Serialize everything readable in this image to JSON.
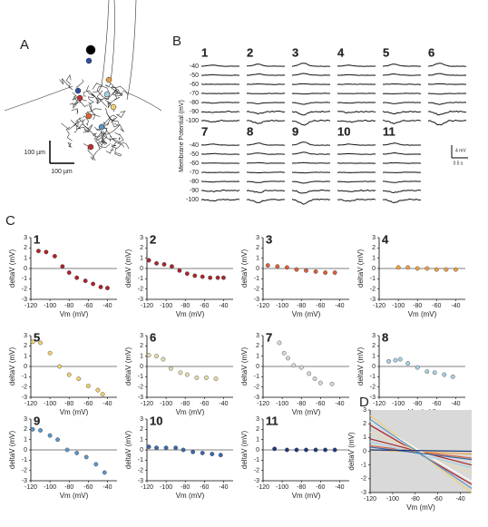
{
  "panel_labels": [
    "A",
    "B",
    "C",
    "D"
  ],
  "panel_a": {
    "scale_y": "100 µm",
    "scale_x": "100 µm"
  },
  "panel_b": {
    "ylabel": "Membrane Potential (mV)",
    "cells": [
      "1",
      "2",
      "3",
      "4",
      "5",
      "6",
      "7",
      "8",
      "9",
      "10",
      "11"
    ],
    "cell_colors": [
      "#b0202a",
      "#a8282c",
      "#d8603a",
      "#eea040",
      "#f0d070",
      "#e6dcaa",
      "#d8d8d8",
      "#a8d0e2",
      "#5a96c8",
      "#3a68a8",
      "#1e3a7c"
    ],
    "levels_top": [
      "-40",
      "-50",
      "-60",
      "-70",
      "-80",
      "-90",
      "-100"
    ],
    "levels_bottom": [
      "-40",
      "-50",
      "-60",
      "-70",
      "-80",
      "-90",
      "-100"
    ],
    "scale_v": "4 mV",
    "scale_t": "0.5 s"
  },
  "chart_data": [
    {
      "type": "scatter",
      "title": "1",
      "color": "#b0202a",
      "x": [
        -112,
        -104,
        -95,
        -87,
        -80,
        -72,
        -63,
        -55,
        -47,
        -40
      ],
      "values": [
        1.7,
        1.6,
        1.2,
        0.2,
        -0.4,
        -0.9,
        -1.2,
        -1.5,
        -1.8,
        -1.9
      ],
      "xlim": [
        -120,
        -30
      ],
      "ylim": [
        -3,
        3
      ],
      "xticks": [
        -120,
        -100,
        -80,
        -60,
        -40
      ],
      "yticks": [
        -3,
        -2,
        -1,
        0,
        1,
        2,
        3
      ],
      "xlabel": "Vm (mV)",
      "ylabel": "deltaV (mV)"
    },
    {
      "type": "scatter",
      "title": "2",
      "color": "#a8282c",
      "x": [
        -118,
        -110,
        -102,
        -94,
        -86,
        -78,
        -70,
        -62,
        -54,
        -46,
        -40
      ],
      "values": [
        0.8,
        0.5,
        0.4,
        0.2,
        -0.2,
        -0.5,
        -0.7,
        -0.8,
        -0.9,
        -0.9,
        -0.9
      ],
      "xlim": [
        -120,
        -30
      ],
      "ylim": [
        -3,
        3
      ],
      "xticks": [
        -120,
        -100,
        -80,
        -60,
        -40
      ],
      "yticks": [
        -3,
        -2,
        -1,
        0,
        1,
        2,
        3
      ],
      "xlabel": "Vm (mV)",
      "ylabel": "deltaV (mV)"
    },
    {
      "type": "scatter",
      "title": "3",
      "color": "#d8603a",
      "x": [
        -115,
        -105,
        -95,
        -85,
        -75,
        -65,
        -55,
        -45
      ],
      "values": [
        0.3,
        0.2,
        0.1,
        -0.1,
        -0.2,
        -0.3,
        -0.4,
        -0.4
      ],
      "xlim": [
        -120,
        -30
      ],
      "ylim": [
        -3,
        3
      ],
      "xticks": [
        -120,
        -100,
        -80,
        -60,
        -40
      ],
      "yticks": [
        -3,
        -2,
        -1,
        0,
        1,
        2,
        3
      ],
      "xlabel": "Vm (mV)",
      "ylabel": "deltaV (mV)"
    },
    {
      "type": "scatter",
      "title": "4",
      "color": "#eea040",
      "x": [
        -100,
        -90,
        -80,
        -70,
        -60,
        -50,
        -40
      ],
      "values": [
        0.1,
        0.1,
        0,
        0,
        -0.1,
        -0.1,
        -0.1
      ],
      "xlim": [
        -120,
        -30
      ],
      "ylim": [
        -3,
        3
      ],
      "xticks": [
        -120,
        -100,
        -80,
        -60,
        -40
      ],
      "yticks": [
        -3,
        -2,
        -1,
        0,
        1,
        2,
        3
      ],
      "xlabel": "Vm (mV)",
      "ylabel": "deltaV (mV)"
    },
    {
      "type": "scatter",
      "title": "5",
      "color": "#f0d070",
      "x": [
        -118,
        -110,
        -100,
        -90,
        -80,
        -70,
        -60,
        -50,
        -45
      ],
      "values": [
        2.4,
        2.3,
        1.3,
        0,
        -0.8,
        -1.2,
        -1.9,
        -2.3,
        -2.7
      ],
      "xlim": [
        -120,
        -30
      ],
      "ylim": [
        -3,
        3
      ],
      "xticks": [
        -120,
        -100,
        -80,
        -60,
        -40
      ],
      "yticks": [
        -3,
        -2,
        -1,
        0,
        1,
        2,
        3
      ],
      "xlabel": "Vm (mV)",
      "ylabel": "deltaV (mV)"
    },
    {
      "type": "scatter",
      "title": "6",
      "color": "#e6dcaa",
      "x": [
        -118,
        -110,
        -103,
        -95,
        -85,
        -78,
        -68,
        -58,
        -48
      ],
      "values": [
        1.1,
        1.0,
        0.7,
        -0.2,
        -0.6,
        -0.8,
        -1.1,
        -1.1,
        -1.2
      ],
      "xlim": [
        -120,
        -30
      ],
      "ylim": [
        -3,
        3
      ],
      "xticks": [
        -120,
        -100,
        -80,
        -60,
        -40
      ],
      "yticks": [
        -3,
        -2,
        -1,
        0,
        1,
        2,
        3
      ],
      "xlabel": "Vm (mV)",
      "ylabel": "deltaV (mV)"
    },
    {
      "type": "scatter",
      "title": "7",
      "color": "#d8d8d8",
      "x": [
        -103,
        -98,
        -94,
        -88,
        -80,
        -72,
        -66,
        -60,
        -48
      ],
      "values": [
        2.3,
        1.3,
        0.8,
        0.1,
        -0.1,
        -0.7,
        -1.2,
        -1.6,
        -1.7
      ],
      "xlim": [
        -120,
        -30
      ],
      "ylim": [
        -3,
        3
      ],
      "xticks": [
        -120,
        -100,
        -80,
        -60,
        -40
      ],
      "yticks": [
        -3,
        -2,
        -1,
        0,
        1,
        2,
        3
      ],
      "xlabel": "Vm (mV)",
      "ylabel": "deltaV (mV)"
    },
    {
      "type": "scatter",
      "title": "8",
      "color": "#a8d0e2",
      "x": [
        -110,
        -103,
        -98,
        -90,
        -80,
        -70,
        -62,
        -52,
        -43
      ],
      "values": [
        0.5,
        0.6,
        0.7,
        0.3,
        -0.1,
        -0.5,
        -0.6,
        -0.8,
        -1.0
      ],
      "xlim": [
        -120,
        -30
      ],
      "ylim": [
        -3,
        3
      ],
      "xticks": [
        -120,
        -100,
        -80,
        -60,
        -40
      ],
      "yticks": [
        -3,
        -2,
        -1,
        0,
        1,
        2,
        3
      ],
      "xlabel": "Vm (mV)",
      "ylabel": "deltaV (mV)"
    },
    {
      "type": "scatter",
      "title": "9",
      "color": "#5a96c8",
      "x": [
        -118,
        -110,
        -100,
        -92,
        -82,
        -72,
        -62,
        -52,
        -43
      ],
      "values": [
        2.0,
        1.9,
        1.4,
        1.0,
        0,
        -0.3,
        -0.7,
        -1.4,
        -2.2
      ],
      "xlim": [
        -120,
        -30
      ],
      "ylim": [
        -3,
        3
      ],
      "xticks": [
        -120,
        -100,
        -80,
        -60,
        -40
      ],
      "yticks": [
        -3,
        -2,
        -1,
        0,
        1,
        2,
        3
      ],
      "xlabel": "Vm (mV)",
      "ylabel": "deltaV (mV)"
    },
    {
      "type": "scatter",
      "title": "10",
      "color": "#3a68a8",
      "x": [
        -118,
        -110,
        -100,
        -90,
        -82,
        -72,
        -62,
        -52,
        -43
      ],
      "values": [
        0.3,
        0.2,
        0.2,
        0.2,
        0,
        -0.2,
        -0.3,
        -0.4,
        -0.5
      ],
      "xlim": [
        -120,
        -30
      ],
      "ylim": [
        -3,
        3
      ],
      "xticks": [
        -120,
        -100,
        -80,
        -60,
        -40
      ],
      "yticks": [
        -3,
        -2,
        -1,
        0,
        1,
        2,
        3
      ],
      "xlabel": "Vm (mV)",
      "ylabel": "deltaV (mV)"
    },
    {
      "type": "scatter",
      "title": "11",
      "color": "#1e3a7c",
      "x": [
        -108,
        -95,
        -85,
        -75,
        -65,
        -55,
        -45
      ],
      "values": [
        0.1,
        0,
        0,
        0,
        0,
        0,
        0
      ],
      "xlim": [
        -120,
        -30
      ],
      "ylim": [
        -3,
        3
      ],
      "xticks": [
        -120,
        -100,
        -80,
        -60,
        -40
      ],
      "yticks": [
        -3,
        -2,
        -1,
        0,
        1,
        2,
        3
      ],
      "xlabel": "Vm (mV)",
      "ylabel": "deltaV (mV)"
    },
    {
      "type": "line",
      "background": "#d9d9d9",
      "x": [
        -120,
        -30
      ],
      "series": [
        {
          "color": "#b0202a",
          "values": [
            1.9,
            -2.4
          ]
        },
        {
          "color": "#a8282c",
          "values": [
            0.9,
            -1.0
          ]
        },
        {
          "color": "#d8603a",
          "values": [
            0.4,
            -0.5
          ]
        },
        {
          "color": "#eea040",
          "values": [
            0.1,
            -0.2
          ]
        },
        {
          "color": "#f0d070",
          "values": [
            2.6,
            -3.0
          ]
        },
        {
          "color": "#e6dcaa",
          "values": [
            1.4,
            -1.6
          ]
        },
        {
          "color": "#ffffff",
          "values": [
            2.2,
            -2.2
          ]
        },
        {
          "color": "#a8d0e2",
          "values": [
            0.7,
            -1.2
          ]
        },
        {
          "color": "#5a96c8",
          "values": [
            2.3,
            -2.7
          ]
        },
        {
          "color": "#3a68a8",
          "values": [
            0.3,
            -0.6
          ]
        },
        {
          "color": "#1e3a7c",
          "values": [
            0.1,
            0
          ]
        }
      ],
      "xlim": [
        -120,
        -30
      ],
      "ylim": [
        -3,
        3
      ],
      "xticks": [
        -120,
        -100,
        -80,
        -60,
        -40
      ],
      "yticks": [
        -3,
        -2,
        -1,
        0,
        1,
        2,
        3
      ],
      "xlabel": "Vm (mV)",
      "ylabel": "deltaV (mV)"
    }
  ]
}
